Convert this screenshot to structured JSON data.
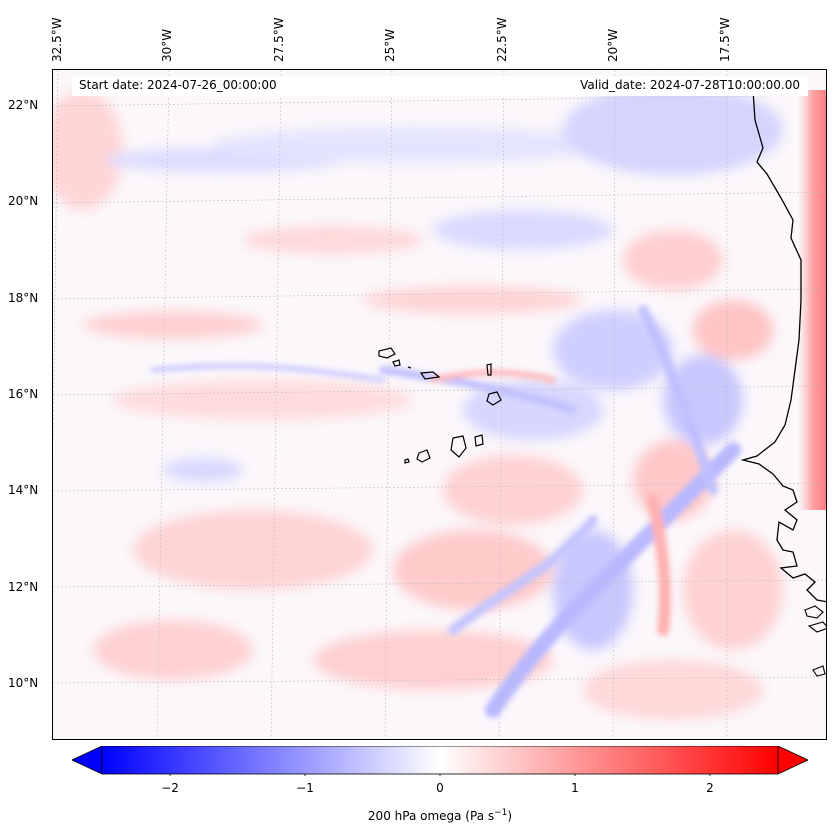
{
  "map": {
    "longitude_labels": [
      "32.5°W",
      "30°W",
      "27.5°W",
      "25°W",
      "22.5°W",
      "20°W",
      "17.5°W"
    ],
    "latitude_labels": [
      "22°N",
      "20°N",
      "18°N",
      "16°N",
      "14°N",
      "12°N",
      "10°N"
    ],
    "start_date": "Start date: 2024-07-26_00:00:00",
    "valid_date": "Valid_date: 2024-07-28T10:00:00.00",
    "field_colors": {
      "negative": "#0000ff",
      "zero": "#ffffff",
      "positive": "#ff0000",
      "coastline": "#000000"
    }
  },
  "colorbar": {
    "ticks": [
      "−2",
      "−1",
      "0",
      "1",
      "2"
    ],
    "label": "200 hPa omega (Pa s",
    "label_sup": "−1",
    "label_end": ")",
    "range": [
      -2.6,
      2.6
    ]
  }
}
